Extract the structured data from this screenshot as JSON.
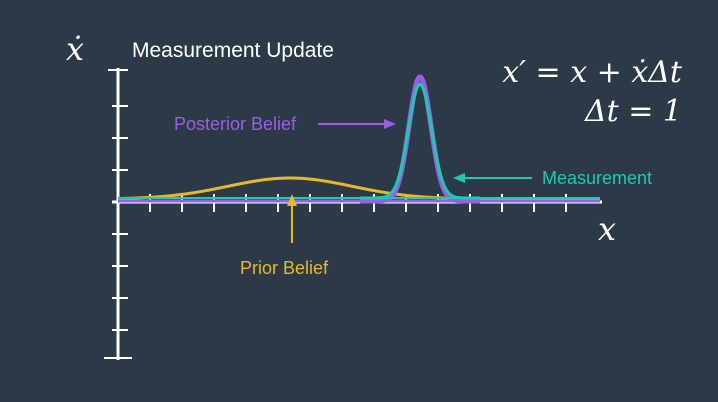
{
  "title": "Measurement Update",
  "axes": {
    "y_label": "ẋ",
    "x_label": "x"
  },
  "equations": {
    "eq1": "x′ = x + ẋΔt",
    "eq2": "Δt = 1"
  },
  "labels": {
    "posterior": "Posterior Belief",
    "measurement": "Measurement",
    "prior": "Prior Belief"
  },
  "colors": {
    "background": "#2c3a47",
    "axis": "#ffffff",
    "posterior": "#9b5de5",
    "measurement": "#1fc9b0",
    "prior": "#e5b92e"
  }
}
